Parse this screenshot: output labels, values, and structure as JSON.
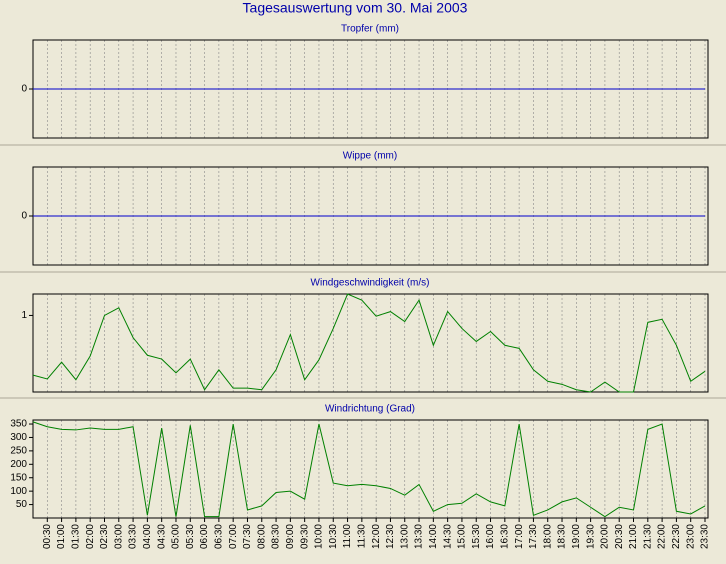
{
  "title": "Tagesauswertung vom 30. Mai 2003",
  "chart_data": [
    {
      "type": "line",
      "title": "Tropfer (mm)",
      "ylim": [
        -1,
        1
      ],
      "yticks": [
        0
      ],
      "series": [
        {
          "color": "#0000cc",
          "values": [
            0,
            0,
            0,
            0,
            0,
            0,
            0,
            0,
            0,
            0,
            0,
            0,
            0,
            0,
            0,
            0,
            0,
            0,
            0,
            0,
            0,
            0,
            0,
            0,
            0,
            0,
            0,
            0,
            0,
            0,
            0,
            0,
            0,
            0,
            0,
            0,
            0,
            0,
            0,
            0,
            0,
            0,
            0,
            0,
            0,
            0,
            0,
            0
          ]
        }
      ]
    },
    {
      "type": "line",
      "title": "Wippe (mm)",
      "ylim": [
        -1,
        1
      ],
      "yticks": [
        0
      ],
      "series": [
        {
          "color": "#0000cc",
          "values": [
            0,
            0,
            0,
            0,
            0,
            0,
            0,
            0,
            0,
            0,
            0,
            0,
            0,
            0,
            0,
            0,
            0,
            0,
            0,
            0,
            0,
            0,
            0,
            0,
            0,
            0,
            0,
            0,
            0,
            0,
            0,
            0,
            0,
            0,
            0,
            0,
            0,
            0,
            0,
            0,
            0,
            0,
            0,
            0,
            0,
            0,
            0,
            0
          ]
        }
      ]
    },
    {
      "type": "line",
      "title": "Windgeschwindigkeit (m/s)",
      "ylim": [
        0,
        1.28
      ],
      "yticks": [
        1
      ],
      "series": [
        {
          "color": "#008000",
          "values": [
            0.22,
            0.17,
            0.39,
            0.16,
            0.47,
            1.0,
            1.1,
            0.71,
            0.48,
            0.43,
            0.25,
            0.43,
            0.03,
            0.29,
            0.05,
            0.05,
            0.03,
            0.29,
            0.75,
            0.16,
            0.42,
            0.83,
            1.28,
            1.2,
            0.99,
            1.05,
            0.92,
            1.2,
            0.61,
            1.05,
            0.83,
            0.66,
            0.79,
            0.61,
            0.57,
            0.29,
            0.14,
            0.1,
            0.03,
            0,
            0.13,
            0,
            0,
            0.91,
            0.95,
            0.61,
            0.14,
            0.27
          ]
        }
      ]
    },
    {
      "type": "line",
      "title": "Windrichtung (Grad)",
      "ylim": [
        0,
        365
      ],
      "yticks": [
        50,
        100,
        150,
        200,
        250,
        300,
        350
      ],
      "categories": [
        null,
        "00:30",
        "01:00",
        "01:30",
        "02:00",
        "02:30",
        "03:00",
        "03:30",
        "04:00",
        "04:30",
        "05:00",
        "05:30",
        "06:00",
        "06:30",
        "07:00",
        "07:30",
        "08:00",
        "08:30",
        "09:00",
        "09:30",
        "10:00",
        "10:30",
        "11:00",
        "11:30",
        "12:00",
        "12:30",
        "13:00",
        "13:30",
        "14:00",
        "14:30",
        "15:00",
        "15:30",
        "16:00",
        "16:30",
        "17:00",
        "17:30",
        "18:00",
        "18:30",
        "19:00",
        "19:30",
        "20:00",
        "20:30",
        "21:00",
        "21:30",
        "22:00",
        "22:30",
        "23:00",
        "23:30"
      ],
      "series": [
        {
          "color": "#008000",
          "values": [
            358,
            340,
            330,
            328,
            335,
            330,
            330,
            340,
            10,
            335,
            5,
            345,
            5,
            5,
            350,
            30,
            45,
            95,
            100,
            70,
            350,
            130,
            120,
            125,
            120,
            110,
            85,
            125,
            25,
            50,
            55,
            90,
            60,
            45,
            350,
            10,
            30,
            60,
            75,
            40,
            5,
            40,
            30,
            330,
            350,
            25,
            15,
            45
          ]
        }
      ]
    }
  ]
}
